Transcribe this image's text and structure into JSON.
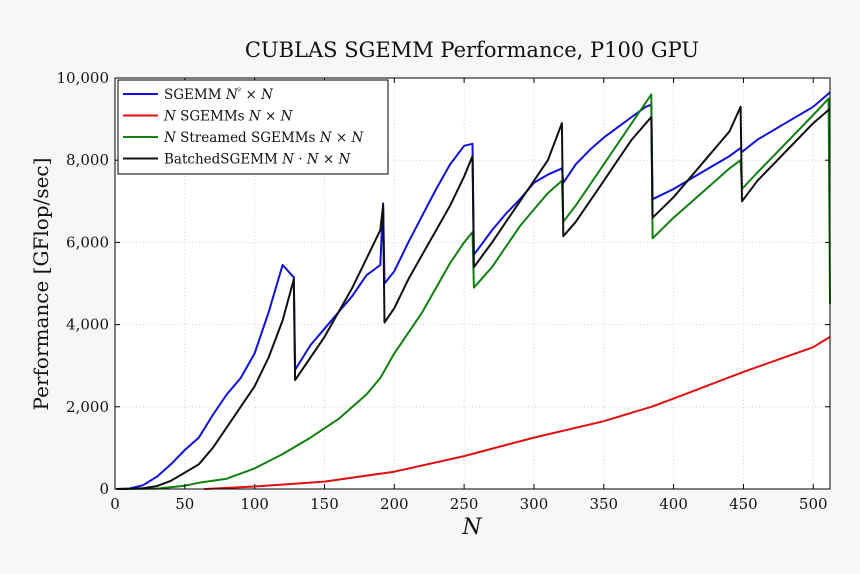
{
  "chart_data": {
    "type": "line",
    "title": "CUBLAS SGEMM Performance, P100 GPU",
    "xlabel": "N",
    "ylabel": "Performance [GFlop/sec]",
    "xlim": [
      0,
      512
    ],
    "ylim": [
      0,
      10000
    ],
    "xticks": [
      0,
      50,
      100,
      150,
      200,
      250,
      300,
      350,
      400,
      450,
      500
    ],
    "yticks": [
      0,
      2000,
      4000,
      6000,
      8000,
      10000
    ],
    "xtick_labels": [
      "0",
      "50",
      "100",
      "150",
      "200",
      "250",
      "300",
      "350",
      "400",
      "450",
      "500"
    ],
    "ytick_labels": [
      "0",
      "2,000",
      "4,000",
      "6,000",
      "8,000",
      "10,000"
    ],
    "grid": true,
    "legend_position": "top-left",
    "series": [
      {
        "name": "SGEMM N² × N",
        "legend_parts": [
          "SGEMM ",
          "N",
          "²",
          " × ",
          "N"
        ],
        "color": "#1010d8",
        "points": [
          [
            1,
            0
          ],
          [
            10,
            10
          ],
          [
            20,
            90
          ],
          [
            30,
            300
          ],
          [
            40,
            600
          ],
          [
            50,
            950
          ],
          [
            60,
            1250
          ],
          [
            70,
            1800
          ],
          [
            80,
            2300
          ],
          [
            90,
            2700
          ],
          [
            100,
            3300
          ],
          [
            110,
            4300
          ],
          [
            120,
            5450
          ],
          [
            128,
            5150
          ],
          [
            129,
            2900
          ],
          [
            140,
            3500
          ],
          [
            150,
            3900
          ],
          [
            160,
            4300
          ],
          [
            170,
            4700
          ],
          [
            180,
            5200
          ],
          [
            190,
            5450
          ],
          [
            192,
            6950
          ],
          [
            193,
            5000
          ],
          [
            200,
            5300
          ],
          [
            210,
            6000
          ],
          [
            220,
            6650
          ],
          [
            230,
            7300
          ],
          [
            240,
            7900
          ],
          [
            250,
            8350
          ],
          [
            256,
            8400
          ],
          [
            257,
            5700
          ],
          [
            270,
            6300
          ],
          [
            280,
            6700
          ],
          [
            290,
            7050
          ],
          [
            300,
            7450
          ],
          [
            310,
            7650
          ],
          [
            320,
            7800
          ],
          [
            321,
            7450
          ],
          [
            330,
            7900
          ],
          [
            340,
            8250
          ],
          [
            350,
            8550
          ],
          [
            360,
            8800
          ],
          [
            370,
            9050
          ],
          [
            380,
            9300
          ],
          [
            384,
            9350
          ],
          [
            385,
            7050
          ],
          [
            400,
            7300
          ],
          [
            420,
            7700
          ],
          [
            440,
            8100
          ],
          [
            448,
            8300
          ],
          [
            449,
            8200
          ],
          [
            460,
            8500
          ],
          [
            480,
            8900
          ],
          [
            500,
            9300
          ],
          [
            512,
            9650
          ]
        ]
      },
      {
        "name": "N SGEMMs N × N",
        "legend_parts": [
          "",
          "N",
          "",
          " SGEMMs ",
          "N",
          " × ",
          "N"
        ],
        "color": "#e01010",
        "points": [
          [
            64,
            0
          ],
          [
            100,
            60
          ],
          [
            150,
            180
          ],
          [
            200,
            420
          ],
          [
            250,
            800
          ],
          [
            300,
            1250
          ],
          [
            350,
            1650
          ],
          [
            384,
            2000
          ],
          [
            400,
            2200
          ],
          [
            450,
            2850
          ],
          [
            500,
            3450
          ],
          [
            512,
            3700
          ]
        ]
      },
      {
        "name": "N Streamed SGEMMs N × N",
        "legend_parts": [
          "",
          "N",
          "",
          " Streamed SGEMMs ",
          "N",
          " × ",
          "N"
        ],
        "color": "#108010",
        "points": [
          [
            1,
            0
          ],
          [
            30,
            10
          ],
          [
            50,
            80
          ],
          [
            60,
            150
          ],
          [
            80,
            250
          ],
          [
            100,
            500
          ],
          [
            120,
            850
          ],
          [
            140,
            1250
          ],
          [
            160,
            1700
          ],
          [
            180,
            2300
          ],
          [
            190,
            2700
          ],
          [
            200,
            3300
          ],
          [
            210,
            3800
          ],
          [
            220,
            4300
          ],
          [
            230,
            4900
          ],
          [
            240,
            5500
          ],
          [
            250,
            6000
          ],
          [
            256,
            6250
          ],
          [
            257,
            4900
          ],
          [
            270,
            5400
          ],
          [
            280,
            5900
          ],
          [
            290,
            6400
          ],
          [
            300,
            6800
          ],
          [
            310,
            7200
          ],
          [
            320,
            7500
          ],
          [
            321,
            6500
          ],
          [
            330,
            6900
          ],
          [
            340,
            7400
          ],
          [
            350,
            7900
          ],
          [
            360,
            8400
          ],
          [
            370,
            8900
          ],
          [
            380,
            9400
          ],
          [
            384,
            9600
          ],
          [
            385,
            6100
          ],
          [
            400,
            6600
          ],
          [
            420,
            7200
          ],
          [
            440,
            7800
          ],
          [
            448,
            8000
          ],
          [
            449,
            7300
          ],
          [
            460,
            7700
          ],
          [
            480,
            8400
          ],
          [
            500,
            9100
          ],
          [
            511,
            9500
          ],
          [
            512,
            4500
          ]
        ]
      },
      {
        "name": "BatchedSGEMM N · N × N",
        "legend_parts": [
          "BatchedSGEMM ",
          "N",
          "",
          " · ",
          "N",
          " × ",
          "N"
        ],
        "color": "#101010",
        "points": [
          [
            1,
            0
          ],
          [
            10,
            5
          ],
          [
            20,
            20
          ],
          [
            30,
            70
          ],
          [
            40,
            200
          ],
          [
            50,
            400
          ],
          [
            60,
            600
          ],
          [
            70,
            1000
          ],
          [
            80,
            1500
          ],
          [
            90,
            2000
          ],
          [
            100,
            2500
          ],
          [
            110,
            3200
          ],
          [
            120,
            4100
          ],
          [
            128,
            5100
          ],
          [
            129,
            2650
          ],
          [
            140,
            3200
          ],
          [
            150,
            3700
          ],
          [
            160,
            4300
          ],
          [
            170,
            4900
          ],
          [
            180,
            5600
          ],
          [
            190,
            6300
          ],
          [
            192,
            6900
          ],
          [
            193,
            4050
          ],
          [
            200,
            4400
          ],
          [
            210,
            5100
          ],
          [
            220,
            5700
          ],
          [
            230,
            6300
          ],
          [
            240,
            6900
          ],
          [
            250,
            7600
          ],
          [
            256,
            8100
          ],
          [
            257,
            5400
          ],
          [
            270,
            6000
          ],
          [
            280,
            6500
          ],
          [
            290,
            7000
          ],
          [
            300,
            7500
          ],
          [
            310,
            8000
          ],
          [
            320,
            8900
          ],
          [
            321,
            6150
          ],
          [
            330,
            6500
          ],
          [
            340,
            7000
          ],
          [
            350,
            7500
          ],
          [
            360,
            8000
          ],
          [
            370,
            8500
          ],
          [
            384,
            9050
          ],
          [
            385,
            6600
          ],
          [
            400,
            7100
          ],
          [
            420,
            7900
          ],
          [
            440,
            8700
          ],
          [
            448,
            9300
          ],
          [
            449,
            7000
          ],
          [
            460,
            7500
          ],
          [
            480,
            8200
          ],
          [
            500,
            8900
          ],
          [
            512,
            9250
          ]
        ]
      }
    ]
  }
}
